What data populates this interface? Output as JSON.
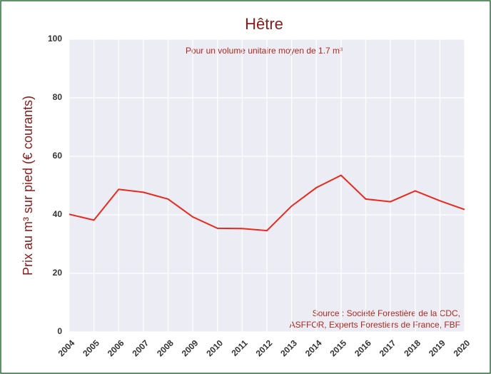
{
  "chart_data": {
    "type": "line",
    "title": "Hêtre",
    "subtitle": "Pour un volume unitaire moyen de 1.7 m³",
    "y_label": "Prix au m³ sur pied (€ courants)",
    "annotation": [
      "Source : Société Forestière de la CDC,",
      "ASFFOR, Experts Forestiers de France, FBF"
    ],
    "categories": [
      "2004",
      "2005",
      "2006",
      "2007",
      "2008",
      "2009",
      "2010",
      "2011",
      "2012",
      "2013",
      "2014",
      "2015",
      "2016",
      "2017",
      "2018",
      "2019",
      "2020"
    ],
    "series": [
      {
        "name": "Hêtre",
        "color": "#e8291c",
        "values": [
          40.2,
          38.2,
          48.7,
          47.7,
          45.4,
          39.3,
          35.4,
          35.3,
          34.6,
          43.0,
          49.3,
          53.5,
          45.4,
          44.5,
          48.2,
          44.8,
          41.8
        ]
      }
    ],
    "ylim": [
      0,
      100
    ],
    "yticks": [
      0,
      20,
      40,
      60,
      80,
      100
    ],
    "grid": true
  }
}
